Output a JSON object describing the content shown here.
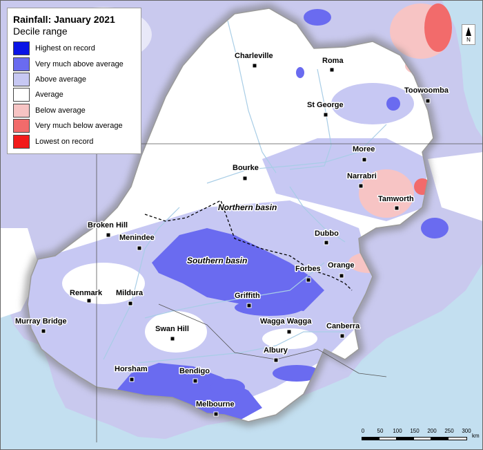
{
  "legend": {
    "title": "Rainfall: January 2021",
    "subtitle": "Decile range",
    "items": [
      {
        "label": "Highest on record",
        "color": "#0a14e6"
      },
      {
        "label": "Very much above average",
        "color": "#6a6bf0"
      },
      {
        "label": "Above average",
        "color": "#c7c8f3"
      },
      {
        "label": "Average",
        "color": "#ffffff"
      },
      {
        "label": "Below average",
        "color": "#f7c4c4"
      },
      {
        "label": "Very much below average",
        "color": "#f26b6b"
      },
      {
        "label": "Lowest on record",
        "color": "#f21a1a"
      }
    ]
  },
  "towns": [
    {
      "name": "Charleville"
    },
    {
      "name": "Roma"
    },
    {
      "name": "Toowoomba"
    },
    {
      "name": "St George"
    },
    {
      "name": "Moree"
    },
    {
      "name": "Narrabri"
    },
    {
      "name": "Bourke"
    },
    {
      "name": "Tamworth"
    },
    {
      "name": "Broken Hill"
    },
    {
      "name": "Menindee"
    },
    {
      "name": "Dubbo"
    },
    {
      "name": "Orange"
    },
    {
      "name": "Forbes"
    },
    {
      "name": "Renmark"
    },
    {
      "name": "Mildura"
    },
    {
      "name": "Griffith"
    },
    {
      "name": "Murray Bridge"
    },
    {
      "name": "Swan Hill"
    },
    {
      "name": "Wagga Wagga"
    },
    {
      "name": "Canberra"
    },
    {
      "name": "Albury"
    },
    {
      "name": "Horsham"
    },
    {
      "name": "Bendigo"
    },
    {
      "name": "Melbourne"
    }
  ],
  "basins": [
    {
      "name": "Northern basin"
    },
    {
      "name": "Southern basin"
    }
  ],
  "north_arrow": {
    "label": "N"
  },
  "scale_bar": {
    "ticks": [
      "0",
      "50",
      "100",
      "150",
      "200",
      "250",
      "300"
    ],
    "unit": "km"
  },
  "colors": {
    "ocean": "#c3dff0",
    "outside_land": "#f0f0f0",
    "basin_border": "#9a9a9a",
    "rivers": "#a8cde6"
  }
}
